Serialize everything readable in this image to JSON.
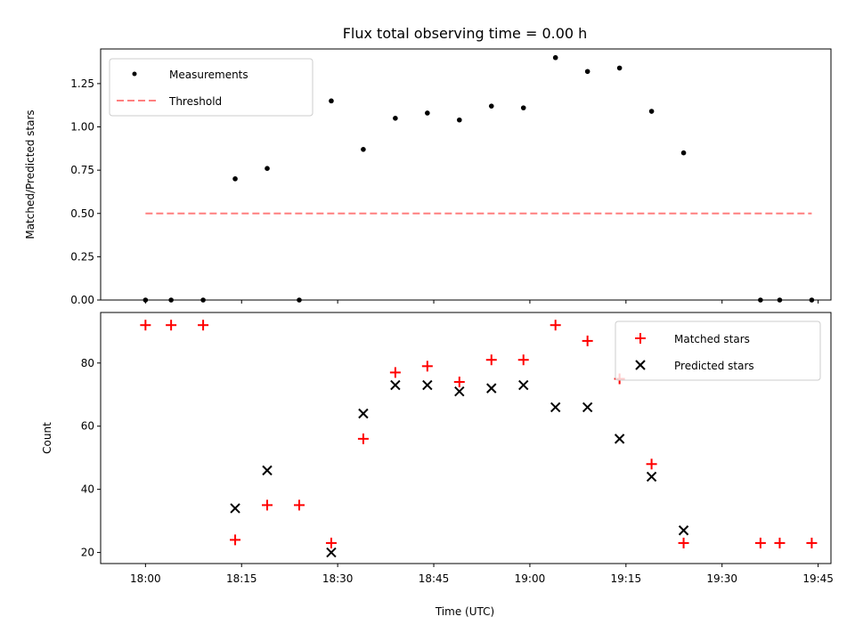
{
  "chart_data": [
    {
      "type": "scatter",
      "title": "Flux total observing time = 0.00 h",
      "ylabel": "Matched/Predicted stars",
      "xlabel": "",
      "xlim": [
        "17:53",
        "19:47"
      ],
      "ylim": [
        0,
        1.45
      ],
      "yticks": [
        "0.00",
        "0.25",
        "0.50",
        "0.75",
        "1.00",
        "1.25"
      ],
      "grid": false,
      "legend_position": "top-left",
      "series": [
        {
          "name": "Measurements",
          "marker": "dot",
          "color": "#000000",
          "points": [
            [
              "18:00",
              0
            ],
            [
              "18:04",
              0
            ],
            [
              "18:09",
              0
            ],
            [
              "18:14",
              0.7
            ],
            [
              "18:19",
              0.76
            ],
            [
              "18:24",
              0
            ],
            [
              "18:29",
              1.15
            ],
            [
              "18:34",
              0.87
            ],
            [
              "18:39",
              1.05
            ],
            [
              "18:44",
              1.08
            ],
            [
              "18:49",
              1.04
            ],
            [
              "18:54",
              1.12
            ],
            [
              "18:59",
              1.11
            ],
            [
              "19:04",
              1.4
            ],
            [
              "19:09",
              1.32
            ],
            [
              "19:14",
              1.34
            ],
            [
              "19:19",
              1.09
            ],
            [
              "19:24",
              0.85
            ],
            [
              "19:36",
              0
            ],
            [
              "19:39",
              0
            ],
            [
              "19:44",
              0
            ]
          ]
        },
        {
          "name": "Threshold",
          "style": "dashed-line",
          "color": "#ff7f7f",
          "points": [
            [
              "18:00",
              0.5
            ],
            [
              "19:44",
              0.5
            ]
          ]
        }
      ]
    },
    {
      "type": "scatter",
      "title": "",
      "xlabel": "Time (UTC)",
      "ylabel": "Count",
      "xlim": [
        "17:53",
        "19:47"
      ],
      "ylim": [
        16.5,
        96
      ],
      "yticks": [
        "20",
        "40",
        "60",
        "80"
      ],
      "xticks": [
        "18:00",
        "18:15",
        "18:30",
        "18:45",
        "19:00",
        "19:15",
        "19:30",
        "19:45"
      ],
      "grid": false,
      "legend_position": "top-right",
      "series": [
        {
          "name": "Matched stars",
          "marker": "plus",
          "color": "#ff0000",
          "points": [
            [
              "18:00",
              92
            ],
            [
              "18:04",
              92
            ],
            [
              "18:09",
              92
            ],
            [
              "18:14",
              24
            ],
            [
              "18:19",
              35
            ],
            [
              "18:24",
              35
            ],
            [
              "18:29",
              23
            ],
            [
              "18:34",
              56
            ],
            [
              "18:39",
              77
            ],
            [
              "18:44",
              79
            ],
            [
              "18:49",
              74
            ],
            [
              "18:54",
              81
            ],
            [
              "18:59",
              81
            ],
            [
              "19:04",
              92
            ],
            [
              "19:09",
              87
            ],
            [
              "19:14",
              75
            ],
            [
              "19:19",
              48
            ],
            [
              "19:24",
              23
            ],
            [
              "19:36",
              23
            ],
            [
              "19:39",
              23
            ],
            [
              "19:44",
              23
            ]
          ]
        },
        {
          "name": "Predicted stars",
          "marker": "x",
          "color": "#000000",
          "points": [
            [
              "18:14",
              34
            ],
            [
              "18:19",
              46
            ],
            [
              "18:29",
              20
            ],
            [
              "18:34",
              64
            ],
            [
              "18:39",
              73
            ],
            [
              "18:44",
              73
            ],
            [
              "18:49",
              71
            ],
            [
              "18:54",
              72
            ],
            [
              "18:59",
              73
            ],
            [
              "19:04",
              66
            ],
            [
              "19:09",
              66
            ],
            [
              "19:14",
              56
            ],
            [
              "19:19",
              44
            ],
            [
              "19:24",
              27
            ]
          ]
        }
      ]
    }
  ]
}
